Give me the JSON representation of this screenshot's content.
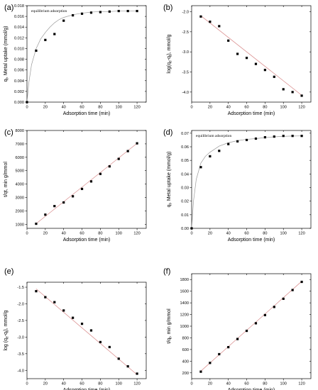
{
  "chart_data": [
    {
      "panel": "(a)",
      "type": "scatter",
      "xlabel": "Adsorption time (min)",
      "ylabel_main": "q",
      "ylabel_sub": "t",
      "ylabel_rest": ", Metal uptake (mmol/g)",
      "annotation": "equilibrium adsorption",
      "xlim": [
        0,
        130
      ],
      "ylim": [
        0,
        0.018
      ],
      "xticks": [
        0,
        20,
        40,
        60,
        80,
        100,
        120
      ],
      "yticks": [
        0,
        0.002,
        0.004,
        0.006,
        0.008,
        0.01,
        0.012,
        0.014,
        0.016,
        0.018
      ],
      "ytick_labels": [
        "0.000",
        "0.002",
        "0.004",
        "0.006",
        "0.008",
        "0.010",
        "0.012",
        "0.014",
        "0.016",
        "0.018"
      ],
      "points": {
        "x": [
          0,
          10,
          20,
          30,
          40,
          50,
          60,
          70,
          80,
          90,
          100,
          110,
          120
        ],
        "y": [
          0,
          0.0096,
          0.0116,
          0.0127,
          0.0152,
          0.0162,
          0.0165,
          0.0167,
          0.0168,
          0.0169,
          0.017,
          0.017,
          0.017
        ]
      },
      "fit": {
        "x": [
          0,
          2,
          5,
          10,
          15,
          20,
          25,
          30,
          35,
          40,
          50,
          60,
          70,
          80,
          90,
          100,
          110,
          120
        ],
        "y": [
          0,
          0.0036,
          0.007,
          0.01,
          0.0118,
          0.013,
          0.014,
          0.0148,
          0.0154,
          0.0158,
          0.0163,
          0.0166,
          0.0168,
          0.0169,
          0.0169,
          0.017,
          0.017,
          0.017
        ]
      }
    },
    {
      "panel": "(b)",
      "type": "scatter",
      "xlabel": "Adsorption time (min)",
      "ylabel_main": "log(q",
      "ylabel_sub": "e",
      "ylabel_rest": "-q",
      "ylabel_sub2": "t",
      "ylabel_rest2": "), mmol/g",
      "xlim": [
        0,
        130
      ],
      "ylim": [
        -4.25,
        -1.85
      ],
      "xticks": [
        0,
        20,
        40,
        60,
        80,
        100,
        120
      ],
      "yticks": [
        -4.0,
        -3.5,
        -3.0,
        -2.5,
        -2.0
      ],
      "ytick_labels": [
        "-4.0",
        "-3.5",
        "-3.0",
        "-2.5",
        "-2.0"
      ],
      "points": {
        "x": [
          10,
          20,
          30,
          40,
          50,
          60,
          70,
          80,
          90,
          100,
          110,
          120
        ],
        "y": [
          -2.12,
          -2.25,
          -2.36,
          -2.72,
          -3.05,
          -3.15,
          -3.3,
          -3.45,
          -3.62,
          -3.93,
          -4.0,
          -4.09
        ]
      },
      "fit": {
        "x": [
          10,
          120
        ],
        "y": [
          -2.1,
          -4.08
        ]
      }
    },
    {
      "panel": "(c)",
      "type": "scatter",
      "xlabel": "Adsorption time (min)",
      "ylabel_main": "t/qt, min g/mmol",
      "xlim": [
        0,
        130
      ],
      "ylim": [
        700,
        8000
      ],
      "xticks": [
        0,
        20,
        40,
        60,
        80,
        100,
        120
      ],
      "yticks": [
        1000,
        2000,
        3000,
        4000,
        5000,
        6000,
        7000,
        8000
      ],
      "ytick_labels": [
        "1000",
        "2000",
        "3000",
        "4000",
        "5000",
        "6000",
        "7000",
        "8000"
      ],
      "points": {
        "x": [
          10,
          20,
          30,
          40,
          50,
          60,
          70,
          80,
          90,
          100,
          110,
          120
        ],
        "y": [
          1040,
          1720,
          2360,
          2630,
          3090,
          3640,
          4200,
          4760,
          5320,
          5880,
          6460,
          7040
        ]
      },
      "fit": {
        "x": [
          10,
          120
        ],
        "y": [
          1050,
          7040
        ]
      }
    },
    {
      "panel": "(d)",
      "type": "scatter",
      "xlabel": "Adsorption time (min)",
      "ylabel_main": "q",
      "ylabel_sub": "t",
      "ylabel_rest": ", Metal uptake (mmol/g)",
      "annotation": "equilibrium adsorption",
      "xlim": [
        0,
        130
      ],
      "ylim": [
        0,
        0.072
      ],
      "xticks": [
        0,
        20,
        40,
        60,
        80,
        100,
        120
      ],
      "yticks": [
        0,
        0.01,
        0.02,
        0.03,
        0.04,
        0.05,
        0.06,
        0.07
      ],
      "ytick_labels": [
        "0.00",
        "0.01",
        "0.02",
        "0.03",
        "0.04",
        "0.05",
        "0.06",
        "0.07"
      ],
      "points": {
        "x": [
          0,
          10,
          20,
          30,
          40,
          50,
          60,
          70,
          80,
          90,
          100,
          110,
          120
        ],
        "y": [
          0,
          0.045,
          0.053,
          0.057,
          0.062,
          0.064,
          0.065,
          0.066,
          0.067,
          0.0675,
          0.068,
          0.068,
          0.068
        ]
      },
      "fit": {
        "x": [
          0,
          2,
          5,
          10,
          15,
          20,
          30,
          40,
          50,
          60,
          70,
          80,
          90,
          100,
          110,
          120
        ],
        "y": [
          0,
          0.02,
          0.036,
          0.048,
          0.053,
          0.056,
          0.0605,
          0.063,
          0.0645,
          0.0655,
          0.066,
          0.0668,
          0.0673,
          0.0677,
          0.0679,
          0.068
        ]
      }
    },
    {
      "panel": "(e)",
      "type": "scatter",
      "xlabel": "Adsorption time (min)",
      "ylabel_main": "log (q",
      "ylabel_sub": "e",
      "ylabel_rest": "-q",
      "ylabel_sub2": "t",
      "ylabel_rest2": "), mmol/g",
      "xlim": [
        0,
        130
      ],
      "ylim": [
        -4.25,
        -1.35
      ],
      "xticks": [
        0,
        20,
        40,
        60,
        80,
        100,
        120
      ],
      "yticks": [
        -4.0,
        -3.5,
        -3.0,
        -2.5,
        -2.0,
        -1.5
      ],
      "ytick_labels": [
        "-4.0",
        "-3.5",
        "-3.0",
        "-2.5",
        "-2.0",
        "-1.5"
      ],
      "points": {
        "x": [
          10,
          20,
          30,
          40,
          50,
          60,
          70,
          80,
          90,
          100,
          110,
          120
        ],
        "y": [
          -1.62,
          -1.8,
          -1.95,
          -2.2,
          -2.42,
          -2.6,
          -2.8,
          -3.15,
          -3.3,
          -3.65,
          -3.88,
          -4.1
        ]
      },
      "fit": {
        "x": [
          10,
          120
        ],
        "y": [
          -1.55,
          -4.13
        ]
      }
    },
    {
      "panel": "(f)",
      "type": "scatter",
      "xlabel": "Adsorption time (min)",
      "ylabel_main": "t/q",
      "ylabel_sub": "t",
      "ylabel_rest": ", min g/mmol",
      "xlim": [
        0,
        130
      ],
      "ylim": [
        100,
        1900
      ],
      "xticks": [
        0,
        20,
        40,
        60,
        80,
        100,
        120
      ],
      "yticks": [
        200,
        400,
        600,
        800,
        1000,
        1200,
        1400,
        1600,
        1800
      ],
      "ytick_labels": [
        "200",
        "400",
        "600",
        "800",
        "1000",
        "1200",
        "1400",
        "1600",
        "1800"
      ],
      "points": {
        "x": [
          10,
          20,
          30,
          40,
          50,
          60,
          70,
          80,
          90,
          100,
          110,
          120
        ],
        "y": [
          220,
          370,
          520,
          640,
          780,
          920,
          1050,
          1190,
          1330,
          1470,
          1620,
          1760
        ]
      },
      "fit": {
        "x": [
          10,
          120
        ],
        "y": [
          230,
          1770
        ]
      }
    }
  ]
}
